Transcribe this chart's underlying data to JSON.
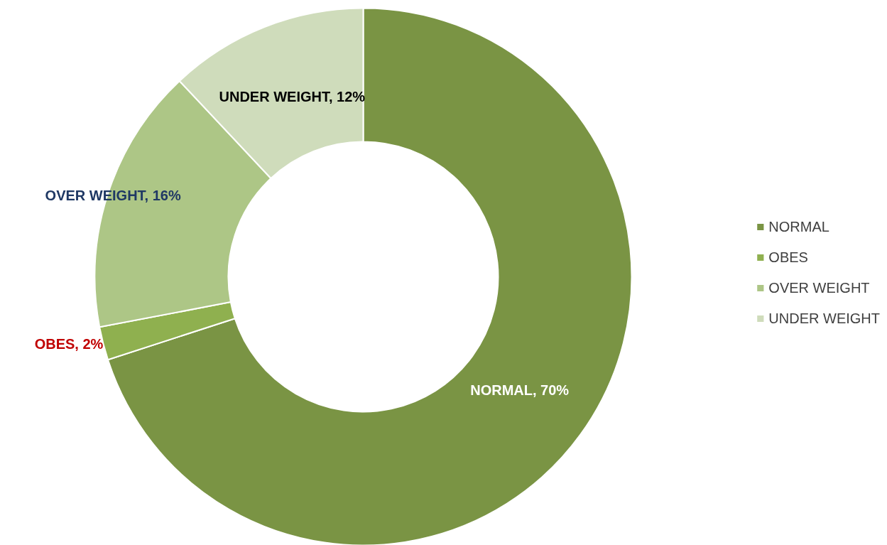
{
  "chart_data": {
    "type": "donut",
    "categories": [
      "NORMAL",
      "OBES",
      "OVER WEIGHT",
      "UNDER WEIGHT"
    ],
    "values": [
      70,
      2,
      16,
      12
    ],
    "colors": [
      "#7a9444",
      "#8fb04f",
      "#adc686",
      "#cfdcbb"
    ],
    "value_labels": [
      "NORMAL, 70%",
      "OBES, 2%",
      "OVER WEIGHT, 16%",
      "UNDER WEIGHT, 12%"
    ],
    "legend": "right"
  }
}
